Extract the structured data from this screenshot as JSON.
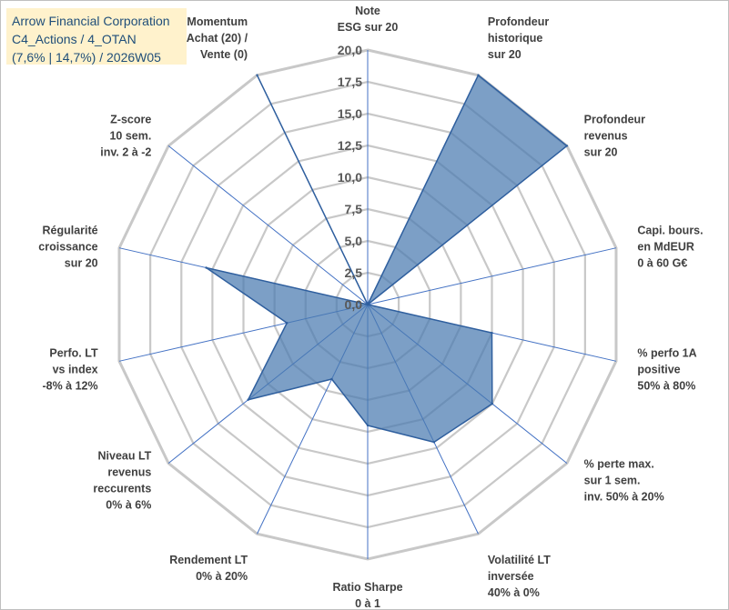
{
  "title_box": {
    "line1": "Arrow Financial Corporation",
    "line2": "C4_Actions / 4_OTAN",
    "line3": "(7,6% | 14,7%) / 2026W05",
    "background": "#fff2cc",
    "text_color": "#1f4e79"
  },
  "chart_data": {
    "type": "radar",
    "categories": [
      [
        "Note",
        "ESG sur 20"
      ],
      [
        "Profondeur",
        "historique",
        "sur 20"
      ],
      [
        "Profondeur",
        "revenus",
        "sur 20"
      ],
      [
        "Capi. bours.",
        "en MdEUR",
        "0 à 60 G€"
      ],
      [
        "% perfo 1A",
        "positive",
        "50% à 80%"
      ],
      [
        "% perte max.",
        "sur 1 sem.",
        "inv. 50% à 20%"
      ],
      [
        "Volatilité LT",
        "inversée",
        "40% à 0%"
      ],
      [
        "Ratio Sharpe",
        "0 à 1"
      ],
      [
        "Rendement LT",
        "0% à 20%"
      ],
      [
        "Niveau LT",
        "revenus",
        "reccurents",
        "0% à 6%"
      ],
      [
        "Perfo. LT",
        "vs index",
        "-8% à 12%"
      ],
      [
        "Régularité",
        "croissance",
        "sur 20"
      ],
      [
        "Z-score",
        "10 sem.",
        "inv. 2 à -2"
      ],
      [
        "Momentum",
        "Achat (20) /",
        "Vente (0)"
      ]
    ],
    "series": [
      {
        "values": [
          0,
          20,
          20,
          0,
          10,
          12.5,
          12,
          9.5,
          6.5,
          12,
          6.5,
          13,
          0,
          20
        ]
      }
    ],
    "ylim": [
      0,
      20
    ],
    "ticks": [
      "0,0",
      "2,5",
      "5,0",
      "7,5",
      "10,0",
      "12,5",
      "15,0",
      "17,5",
      "20,0"
    ],
    "grid": true,
    "legend": "none",
    "colors": {
      "fill": "#4a7ab0",
      "fill_opacity": 0.72,
      "stroke": "#2f5f9e",
      "grid": "#c8c8c8",
      "spoke": "#4472c4"
    }
  }
}
